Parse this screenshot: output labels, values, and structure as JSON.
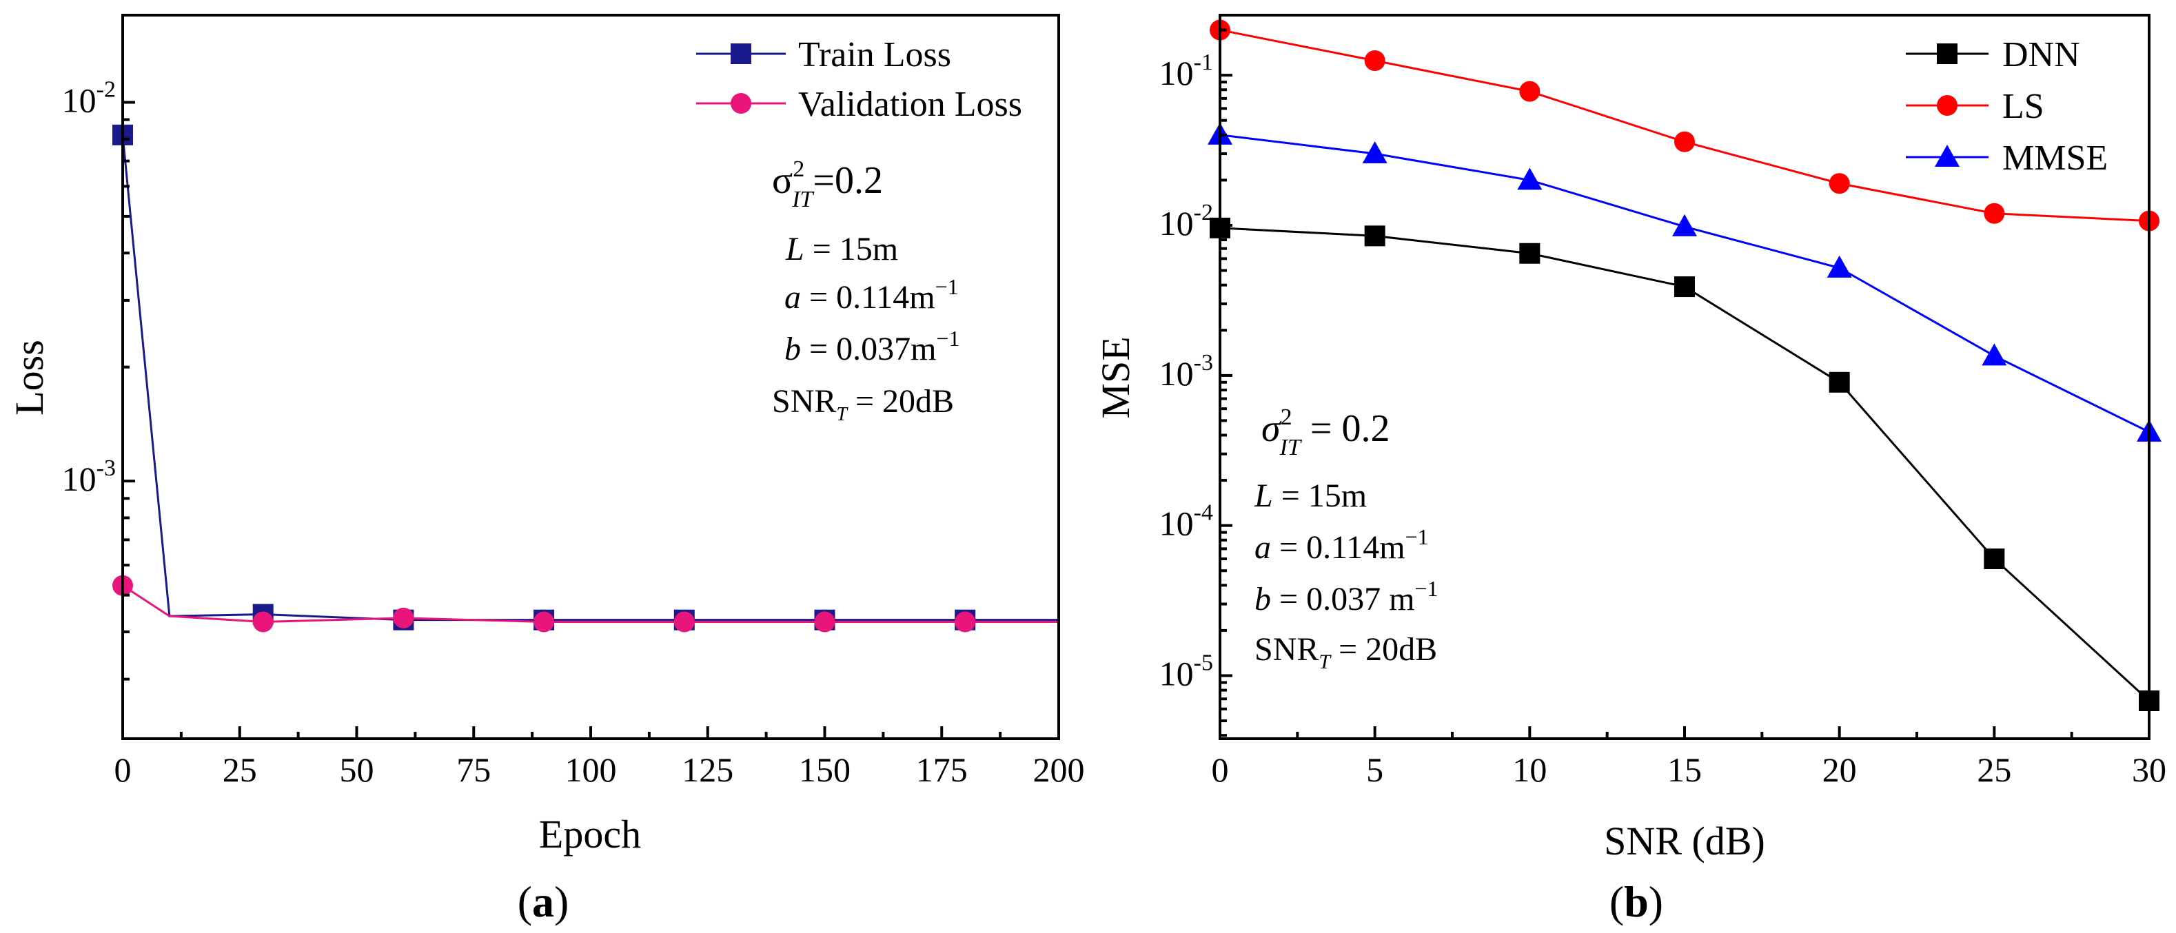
{
  "colors": {
    "train": "#1a1a8c",
    "validation": "#e8157a",
    "dnn": "#000000",
    "ls": "#ff0000",
    "mmse": "#0000ff"
  },
  "chart_data": [
    {
      "type": "line",
      "panel_label": "(a)",
      "xlabel": "Epoch",
      "ylabel": "Loss",
      "yscale": "log",
      "xlim": [
        0,
        200
      ],
      "ylim_exp": [
        -3.68,
        -1.77
      ],
      "x_ticks": [
        "0",
        "25",
        "50",
        "75",
        "100",
        "125",
        "150",
        "175",
        "200"
      ],
      "x_tick_values": [
        0,
        25,
        50,
        75,
        100,
        125,
        150,
        175,
        200
      ],
      "y_ticks": [
        {
          "base": "10",
          "exp": "-3",
          "value": -3
        },
        {
          "base": "10",
          "exp": "-2",
          "value": -2
        }
      ],
      "series": [
        {
          "name": "Train Loss",
          "marker": "square",
          "color_key": "train",
          "line_x": [
            0,
            10,
            30,
            60,
            90,
            120,
            150,
            180,
            200
          ],
          "line_y": [
            0.0082,
            0.00044,
            0.000445,
            0.00043,
            0.00043,
            0.00043,
            0.00043,
            0.00043,
            0.00043
          ],
          "marker_x": [
            0,
            30,
            60,
            90,
            120,
            150,
            180
          ],
          "marker_y": [
            0.0082,
            0.000445,
            0.00043,
            0.00043,
            0.00043,
            0.00043,
            0.00043
          ]
        },
        {
          "name": "Validation Loss",
          "marker": "circle",
          "color_key": "validation",
          "line_x": [
            0,
            10,
            30,
            60,
            90,
            120,
            150,
            180,
            200
          ],
          "line_y": [
            0.00053,
            0.00044,
            0.000425,
            0.000435,
            0.000425,
            0.000425,
            0.000425,
            0.000425,
            0.000425
          ],
          "marker_x": [
            0,
            30,
            60,
            90,
            120,
            150,
            180
          ],
          "marker_y": [
            0.00053,
            0.000425,
            0.000435,
            0.000425,
            0.000425,
            0.000425,
            0.000425
          ]
        }
      ],
      "legend": {
        "placement": "top-right",
        "items": [
          "Train Loss",
          "Validation Loss"
        ]
      },
      "annotations": {
        "sigma": {
          "symbol": "σ",
          "sup": "2",
          "sub": "IT",
          "rest": "=0.2"
        },
        "L": {
          "var": "L",
          "rest": " = 15m"
        },
        "a": {
          "var": "a",
          "rest": " = 0.114m",
          "sup": "−1"
        },
        "b": {
          "var": "b",
          "rest": " = 0.037m",
          "sup": "−1"
        },
        "snr": {
          "pre": "SNR",
          "sub": "T",
          "rest": " = 20dB"
        }
      }
    },
    {
      "type": "line",
      "panel_label": "(b)",
      "xlabel": "SNR (dB)",
      "ylabel": "MSE",
      "yscale": "log",
      "xlim": [
        0,
        30
      ],
      "ylim_exp": [
        -5.42,
        -0.6
      ],
      "x_ticks": [
        "0",
        "5",
        "10",
        "15",
        "20",
        "25",
        "30"
      ],
      "x_tick_values": [
        0,
        5,
        10,
        15,
        20,
        25,
        30
      ],
      "y_ticks": [
        {
          "base": "10",
          "exp": "-5",
          "value": -5
        },
        {
          "base": "10",
          "exp": "-4",
          "value": -4
        },
        {
          "base": "10",
          "exp": "-3",
          "value": -3
        },
        {
          "base": "10",
          "exp": "-2",
          "value": -2
        },
        {
          "base": "10",
          "exp": "-1",
          "value": -1
        }
      ],
      "series": [
        {
          "name": "DNN",
          "marker": "square",
          "color_key": "dnn",
          "x": [
            0,
            5,
            10,
            15,
            20,
            25,
            30
          ],
          "y": [
            0.0096,
            0.0085,
            0.0065,
            0.0039,
            0.0009,
            6e-05,
            6.8e-06
          ]
        },
        {
          "name": "LS",
          "marker": "circle",
          "color_key": "ls",
          "x": [
            0,
            5,
            10,
            15,
            20,
            25,
            30
          ],
          "y": [
            0.2,
            0.125,
            0.078,
            0.036,
            0.019,
            0.012,
            0.0107
          ]
        },
        {
          "name": "MMSE",
          "marker": "triangle",
          "color_key": "mmse",
          "x": [
            0,
            5,
            10,
            15,
            20,
            25,
            30
          ],
          "y": [
            0.04,
            0.03,
            0.02,
            0.0098,
            0.0052,
            0.00135,
            0.00042
          ]
        }
      ],
      "legend": {
        "placement": "top-right",
        "items": [
          "DNN",
          "LS",
          "MMSE"
        ]
      },
      "annotations": {
        "sigma": {
          "symbol": "σ",
          "sup": "2",
          "sub": "IT",
          "rest": " = 0.2"
        },
        "L": {
          "var": "L",
          "rest": " = 15m"
        },
        "a": {
          "var": "a",
          "rest": " = 0.114m",
          "sup": "−1"
        },
        "b": {
          "var": "b",
          "rest": " = 0.037 m",
          "sup": "−1"
        },
        "snr": {
          "pre": "SNR",
          "sub": "T",
          "rest": " = 20dB"
        }
      }
    }
  ]
}
